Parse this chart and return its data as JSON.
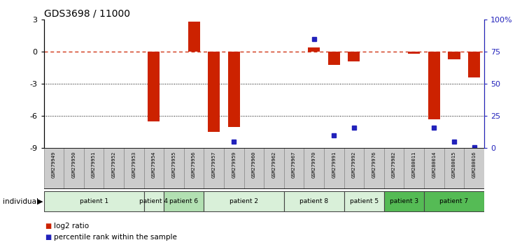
{
  "title": "GDS3698 / 11000",
  "samples": [
    "GSM279949",
    "GSM279950",
    "GSM279951",
    "GSM279952",
    "GSM279953",
    "GSM279954",
    "GSM279955",
    "GSM279956",
    "GSM279957",
    "GSM279959",
    "GSM279960",
    "GSM279962",
    "GSM279967",
    "GSM279970",
    "GSM279991",
    "GSM279992",
    "GSM279976",
    "GSM279982",
    "GSM280011",
    "GSM280014",
    "GSM280015",
    "GSM280016"
  ],
  "log2_ratio": [
    0,
    0,
    0,
    0,
    0,
    -6.5,
    0,
    2.8,
    -7.5,
    -7.0,
    0,
    0,
    0,
    0.4,
    -1.2,
    -0.9,
    0,
    0,
    -0.15,
    -6.3,
    -0.7,
    -2.4
  ],
  "percentile_rank": [
    null,
    null,
    null,
    null,
    null,
    null,
    null,
    null,
    null,
    5,
    null,
    null,
    null,
    85,
    10,
    16,
    null,
    null,
    null,
    16,
    5,
    1
  ],
  "patients": [
    {
      "label": "patient 1",
      "start": 0,
      "end": 4,
      "color": "#d9f0d9"
    },
    {
      "label": "patient 4",
      "start": 5,
      "end": 5,
      "color": "#d9f0d9"
    },
    {
      "label": "patient 6",
      "start": 6,
      "end": 7,
      "color": "#b2e0b2"
    },
    {
      "label": "patient 2",
      "start": 8,
      "end": 11,
      "color": "#d9f0d9"
    },
    {
      "label": "patient 8",
      "start": 12,
      "end": 14,
      "color": "#d9f0d9"
    },
    {
      "label": "patient 5",
      "start": 15,
      "end": 16,
      "color": "#d9f0d9"
    },
    {
      "label": "patient 3",
      "start": 17,
      "end": 18,
      "color": "#55bb55"
    },
    {
      "label": "patient 7",
      "start": 19,
      "end": 21,
      "color": "#55bb55"
    }
  ],
  "ylim_left": [
    -9,
    3
  ],
  "ylim_right": [
    0,
    100
  ],
  "yticks_left": [
    -9,
    -6,
    -3,
    0,
    3
  ],
  "yticks_right": [
    0,
    25,
    50,
    75,
    100
  ],
  "ytick_labels_right": [
    "0",
    "25",
    "50",
    "75",
    "100%"
  ],
  "dotted_lines": [
    -3,
    -6
  ],
  "bar_color_red": "#cc2200",
  "bar_color_blue": "#2222bb"
}
